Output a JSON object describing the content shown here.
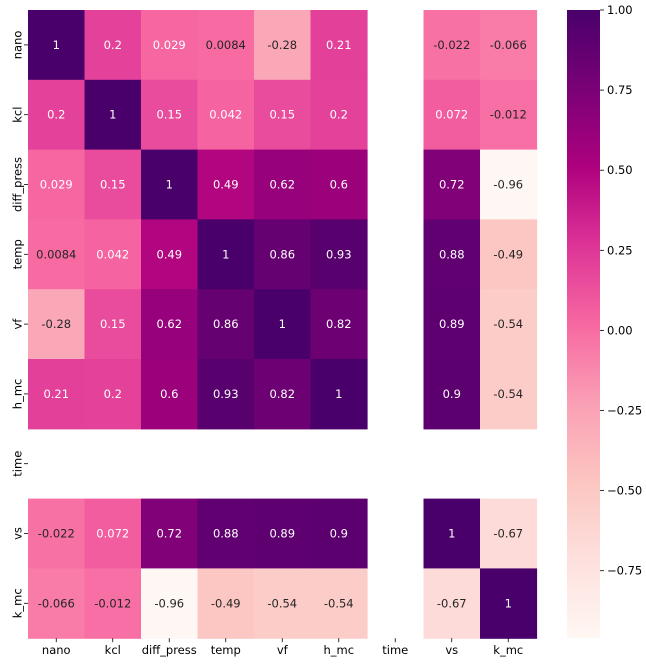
{
  "chart_data": {
    "type": "heatmap",
    "title": "",
    "xlabel": "",
    "ylabel": "",
    "variables": [
      "nano",
      "kcl",
      "diff_press",
      "temp",
      "vf",
      "h_mc",
      "time",
      "vs",
      "k_mc"
    ],
    "matrix": [
      [
        1,
        0.2,
        0.029,
        0.0084,
        -0.28,
        0.21,
        null,
        -0.022,
        -0.066
      ],
      [
        0.2,
        1,
        0.15,
        0.042,
        0.15,
        0.2,
        null,
        0.072,
        -0.012
      ],
      [
        0.029,
        0.15,
        1,
        0.49,
        0.62,
        0.6,
        null,
        0.72,
        -0.96
      ],
      [
        0.0084,
        0.042,
        0.49,
        1,
        0.86,
        0.93,
        null,
        0.88,
        -0.49
      ],
      [
        -0.28,
        0.15,
        0.62,
        0.86,
        1,
        0.82,
        null,
        0.89,
        -0.54
      ],
      [
        0.21,
        0.2,
        0.6,
        0.93,
        0.82,
        1,
        null,
        0.9,
        -0.54
      ],
      [
        null,
        null,
        null,
        null,
        null,
        null,
        null,
        null,
        null
      ],
      [
        -0.022,
        0.072,
        0.72,
        0.88,
        0.89,
        0.9,
        null,
        1,
        -0.67
      ],
      [
        -0.066,
        -0.012,
        -0.96,
        -0.49,
        -0.54,
        -0.54,
        null,
        -0.67,
        1
      ]
    ],
    "annotations": [
      [
        "1",
        "0.2",
        "0.029",
        "0.0084",
        "-0.28",
        "0.21",
        "",
        "-0.022",
        "-0.066"
      ],
      [
        "0.2",
        "1",
        "0.15",
        "0.042",
        "0.15",
        "0.2",
        "",
        "0.072",
        "-0.012"
      ],
      [
        "0.029",
        "0.15",
        "1",
        "0.49",
        "0.62",
        "0.6",
        "",
        "0.72",
        "-0.96"
      ],
      [
        "0.0084",
        "0.042",
        "0.49",
        "1",
        "0.86",
        "0.93",
        "",
        "0.88",
        "-0.49"
      ],
      [
        "-0.28",
        "0.15",
        "0.62",
        "0.86",
        "1",
        "0.82",
        "",
        "0.89",
        "-0.54"
      ],
      [
        "0.21",
        "0.2",
        "0.6",
        "0.93",
        "0.82",
        "1",
        "",
        "0.9",
        "-0.54"
      ],
      [
        "",
        "",
        "",
        "",
        "",
        "",
        "",
        "",
        ""
      ],
      [
        "-0.022",
        "0.072",
        "0.72",
        "0.88",
        "0.89",
        "0.9",
        "",
        "1",
        "-0.67"
      ],
      [
        "-0.066",
        "-0.012",
        "-0.96",
        "-0.49",
        "-0.54",
        "-0.54",
        "",
        "-0.67",
        "1"
      ]
    ],
    "colorbar": {
      "range": [
        -0.96,
        1
      ],
      "ticks": [
        1.0,
        0.75,
        0.5,
        0.25,
        0.0,
        -0.25,
        -0.5,
        -0.75
      ],
      "tick_labels": [
        "1.00",
        "0.75",
        "0.50",
        "0.25",
        "0.00",
        "−0.25",
        "−0.50",
        "−0.75"
      ],
      "colormap": "RdPu",
      "stops": [
        "#fff7f3",
        "#fde0dd",
        "#fcc5c0",
        "#fa9fb5",
        "#f768a1",
        "#dd3497",
        "#ae017e",
        "#7a0177",
        "#49006a"
      ]
    },
    "grid": false,
    "legend": "right"
  }
}
